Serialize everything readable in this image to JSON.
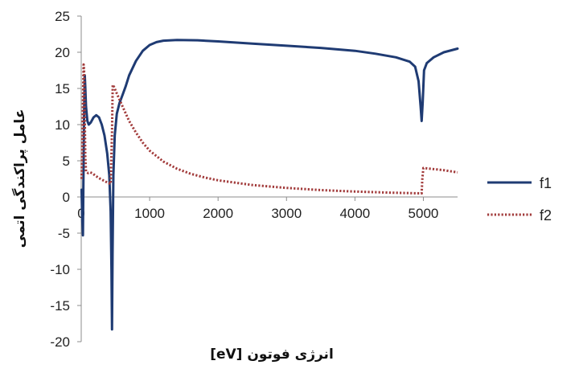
{
  "chart_data": {
    "type": "line",
    "title": "",
    "xlabel": "[eV] انرژی فوتون",
    "ylabel": "عامل پراکندگی اتمی",
    "xlim": [
      0,
      5500
    ],
    "ylim": [
      -20,
      25
    ],
    "xticks": [
      0,
      1000,
      2000,
      3000,
      4000,
      5000
    ],
    "yticks": [
      -20,
      -15,
      -10,
      -5,
      0,
      5,
      10,
      15,
      20,
      25
    ],
    "grid": false,
    "legend_position": "right",
    "series": [
      {
        "name": "f1",
        "style": "solid",
        "color": "#1f3b73",
        "points": [
          [
            5,
            1.0
          ],
          [
            15,
            -3.0
          ],
          [
            25,
            -5.3
          ],
          [
            32,
            2.0
          ],
          [
            38,
            8.0
          ],
          [
            45,
            14.0
          ],
          [
            52,
            16.8
          ],
          [
            58,
            15.5
          ],
          [
            70,
            12.5
          ],
          [
            90,
            10.5
          ],
          [
            110,
            10.0
          ],
          [
            140,
            10.3
          ],
          [
            180,
            11.0
          ],
          [
            220,
            11.3
          ],
          [
            260,
            11.0
          ],
          [
            300,
            10.0
          ],
          [
            340,
            8.5
          ],
          [
            380,
            6.0
          ],
          [
            410,
            3.0
          ],
          [
            430,
            -2.0
          ],
          [
            442,
            -10.0
          ],
          [
            450,
            -18.3
          ],
          [
            458,
            -8.0
          ],
          [
            470,
            3.0
          ],
          [
            490,
            8.5
          ],
          [
            520,
            11.5
          ],
          [
            560,
            13.0
          ],
          [
            600,
            14.0
          ],
          [
            650,
            15.3
          ],
          [
            700,
            16.8
          ],
          [
            800,
            18.8
          ],
          [
            900,
            20.2
          ],
          [
            1000,
            21.0
          ],
          [
            1100,
            21.4
          ],
          [
            1200,
            21.6
          ],
          [
            1400,
            21.7
          ],
          [
            1700,
            21.65
          ],
          [
            2000,
            21.5
          ],
          [
            2500,
            21.2
          ],
          [
            3000,
            20.9
          ],
          [
            3500,
            20.6
          ],
          [
            4000,
            20.2
          ],
          [
            4300,
            19.8
          ],
          [
            4600,
            19.3
          ],
          [
            4800,
            18.7
          ],
          [
            4880,
            18.0
          ],
          [
            4930,
            16.0
          ],
          [
            4960,
            12.5
          ],
          [
            4975,
            10.5
          ],
          [
            4990,
            13.0
          ],
          [
            5010,
            17.5
          ],
          [
            5050,
            18.5
          ],
          [
            5150,
            19.3
          ],
          [
            5300,
            20.0
          ],
          [
            5500,
            20.5
          ]
        ]
      },
      {
        "name": "f2",
        "style": "dotted",
        "color": "#a23b3b",
        "points": [
          [
            5,
            2.5
          ],
          [
            20,
            9.0
          ],
          [
            28,
            15.0
          ],
          [
            35,
            18.3
          ],
          [
            42,
            17.5
          ],
          [
            50,
            12.0
          ],
          [
            60,
            5.5
          ],
          [
            70,
            3.5
          ],
          [
            100,
            3.3
          ],
          [
            130,
            3.4
          ],
          [
            160,
            3.3
          ],
          [
            200,
            3.0
          ],
          [
            260,
            2.6
          ],
          [
            320,
            2.3
          ],
          [
            380,
            2.0
          ],
          [
            430,
            1.8
          ],
          [
            450,
            9.0
          ],
          [
            460,
            15.5
          ],
          [
            480,
            15.2
          ],
          [
            520,
            14.3
          ],
          [
            600,
            12.6
          ],
          [
            700,
            10.5
          ],
          [
            800,
            8.9
          ],
          [
            900,
            7.5
          ],
          [
            1000,
            6.4
          ],
          [
            1200,
            4.9
          ],
          [
            1400,
            3.9
          ],
          [
            1600,
            3.2
          ],
          [
            1800,
            2.7
          ],
          [
            2000,
            2.3
          ],
          [
            2500,
            1.65
          ],
          [
            3000,
            1.25
          ],
          [
            3500,
            0.95
          ],
          [
            4000,
            0.75
          ],
          [
            4500,
            0.6
          ],
          [
            4950,
            0.5
          ],
          [
            4975,
            0.5
          ],
          [
            4985,
            2.5
          ],
          [
            5000,
            4.0
          ],
          [
            5100,
            3.9
          ],
          [
            5300,
            3.7
          ],
          [
            5500,
            3.4
          ]
        ]
      }
    ]
  }
}
